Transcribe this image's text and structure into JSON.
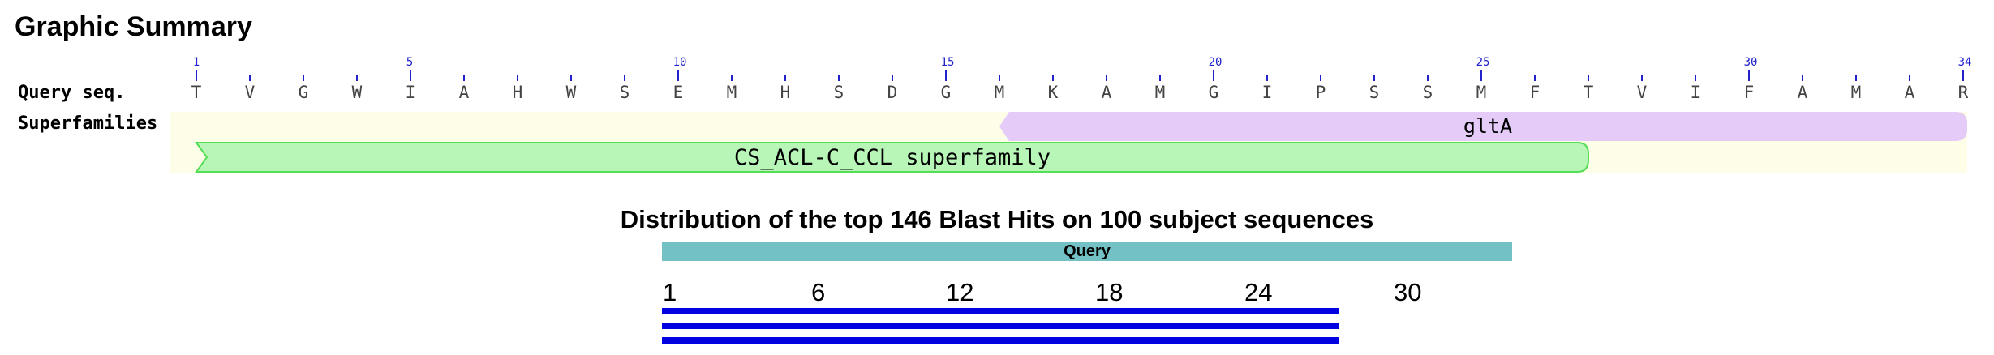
{
  "title": "Graphic Summary",
  "query_label": "Query seq.",
  "superfamilies_label": "Superfamilies",
  "residues": [
    "T",
    "V",
    "G",
    "W",
    "I",
    "A",
    "H",
    "W",
    "S",
    "E",
    "M",
    "H",
    "S",
    "D",
    "G",
    "M",
    "K",
    "A",
    "M",
    "G",
    "I",
    "P",
    "S",
    "S",
    "M",
    "F",
    "T",
    "V",
    "I",
    "F",
    "A",
    "M",
    "A",
    "R"
  ],
  "position_labels": [
    "1",
    "5",
    "10",
    "15",
    "20",
    "25",
    "30",
    "34"
  ],
  "domains": [
    {
      "name": "gltA",
      "color": "#e4cbf8"
    },
    {
      "name": "CS_ACL-C_CCL superfamily",
      "color": "#b8f6b8",
      "border": "#55dd55"
    }
  ],
  "hits": {
    "title": "Distribution of the top 146 Blast Hits on 100 subject sequences",
    "query_label": "Query",
    "axis": [
      "1",
      "6",
      "12",
      "18",
      "24",
      "30"
    ],
    "colors": {
      "query_bar": "#73c1c4",
      "hit": "#0000e0"
    }
  }
}
